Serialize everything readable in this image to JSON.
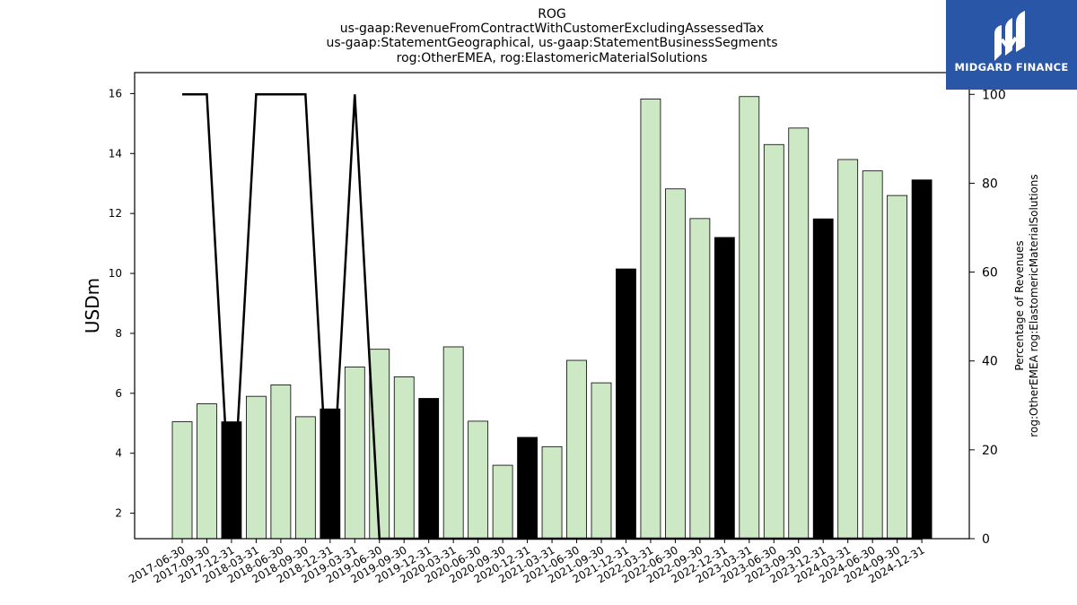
{
  "chart_data": {
    "type": "bar",
    "title_lines": [
      "ROG",
      "us-gaap:RevenueFromContractWithCustomerExcludingAssessedTax",
      "us-gaap:StatementGeographical, us-gaap:StatementBusinessSegments",
      "rog:OtherEMEA, rog:ElastomericMaterialSolutions"
    ],
    "ylabel": "USDm",
    "y2label_lines": [
      "Percentage of Revenues",
      "rog:OtherEMEA rog:ElastomericMaterialSolutions"
    ],
    "categories": [
      "2017-06-30",
      "2017-09-30",
      "2017-12-31",
      "2018-03-31",
      "2018-06-30",
      "2018-09-30",
      "2018-12-31",
      "2019-03-31",
      "2019-06-30",
      "2019-09-30",
      "2019-12-31",
      "2020-03-31",
      "2020-06-30",
      "2020-09-30",
      "2020-12-31",
      "2021-03-31",
      "2021-06-30",
      "2021-09-30",
      "2021-12-31",
      "2022-03-31",
      "2022-06-30",
      "2022-09-30",
      "2022-12-31",
      "2023-03-31",
      "2023-06-30",
      "2023-09-30",
      "2023-12-31",
      "2024-03-31",
      "2024-06-30",
      "2024-09-30",
      "2024-12-31"
    ],
    "values": [
      5.05,
      5.65,
      5.05,
      5.9,
      6.28,
      5.22,
      5.48,
      6.88,
      7.47,
      6.55,
      5.83,
      7.55,
      5.07,
      3.6,
      4.53,
      4.22,
      7.1,
      6.35,
      10.15,
      15.82,
      12.82,
      11.83,
      11.2,
      15.9,
      14.3,
      14.85,
      11.82,
      13.8,
      13.42,
      12.6,
      13.12
    ],
    "highlight": [
      false,
      false,
      true,
      false,
      false,
      false,
      true,
      false,
      false,
      false,
      true,
      false,
      false,
      false,
      true,
      false,
      false,
      false,
      true,
      false,
      false,
      false,
      true,
      false,
      false,
      false,
      true,
      false,
      false,
      false,
      true
    ],
    "percentage_series": [
      100,
      100,
      0,
      100,
      100,
      100,
      0,
      100,
      0,
      0,
      0,
      0,
      0,
      0,
      0,
      0,
      0,
      0,
      0,
      0,
      0,
      0,
      0,
      0,
      0,
      0,
      0,
      0,
      0,
      0,
      0
    ],
    "ylim": [
      1.15,
      16.7
    ],
    "yticks": [
      2,
      4,
      6,
      8,
      10,
      12,
      14,
      16
    ],
    "y2lim": [
      0,
      104.9
    ],
    "y2ticks": [
      0,
      20,
      40,
      60,
      80,
      100
    ],
    "colors": {
      "bar": "#cce8c4",
      "bar_highlight": "#000000",
      "line": "#000000"
    }
  },
  "logo": {
    "text": "MIDGARD FINANCE",
    "bg": "#2a56a8"
  }
}
